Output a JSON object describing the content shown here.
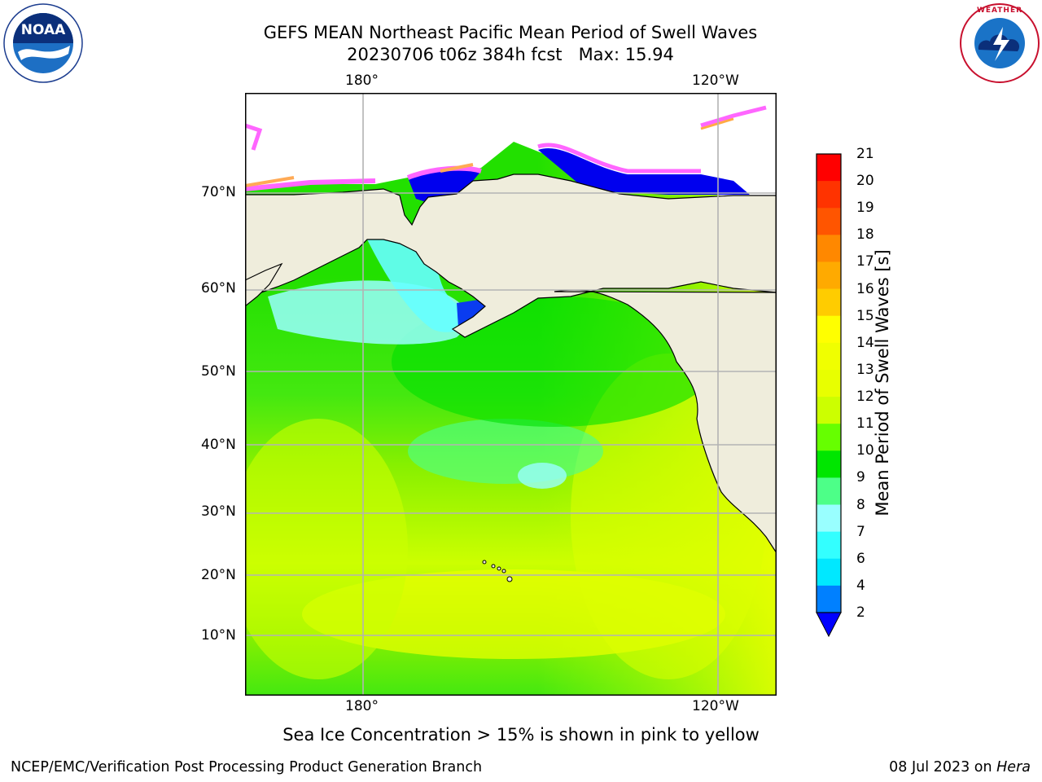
{
  "header": {
    "title_line1": "GEFS MEAN Northeast Pacific Mean Period of Swell Waves",
    "title_line2": "20230706 t06z 384h fcst   Max: 15.94"
  },
  "logos": {
    "left": {
      "name": "NOAA",
      "text": "NOAA",
      "ring_text": "NATIONAL OCEANIC AND ATMOSPHERIC ADMINISTRATION · U.S. DEPARTMENT OF COMMERCE"
    },
    "right": {
      "name": "National Weather Service",
      "ring_text": "NATIONAL WEATHER SERVICE"
    }
  },
  "map": {
    "lon_labels_top": [
      "180°",
      "120°W"
    ],
    "lon_labels_bottom": [
      "180°",
      "120°W"
    ],
    "lat_labels": [
      "70°N",
      "60°N",
      "50°N",
      "40°N",
      "30°N",
      "20°N",
      "10°N"
    ],
    "colors": {
      "land": "#efeddc",
      "grid": "#b3b3b3",
      "coast": "#000000"
    }
  },
  "colorbar": {
    "label": "Mean Period of Swell Waves [s]",
    "ticks": [
      "2",
      "4",
      "6",
      "7",
      "8",
      "9",
      "10",
      "11",
      "12",
      "13",
      "14",
      "15",
      "16",
      "17",
      "18",
      "19",
      "20",
      "21"
    ],
    "colors": [
      "#0a3cf0",
      "#0080ff",
      "#00e8ff",
      "#33ffff",
      "#99ffff",
      "#4dff88",
      "#00e600",
      "#66ff00",
      "#ccff00",
      "#e8ff00",
      "#f0ff00",
      "#ffff00",
      "#ffcc00",
      "#ffaa00",
      "#ff8800",
      "#ff5500",
      "#ff3300",
      "#ff0000"
    ],
    "extend_color": "#0000ff"
  },
  "footer": {
    "note": "Sea Ice Concentration > 15% is shown in pink to yellow",
    "credit": "NCEP/EMC/Verification Post Processing Product Generation Branch",
    "date_prefix": "08 Jul 2023 on ",
    "machine": "Hera"
  }
}
